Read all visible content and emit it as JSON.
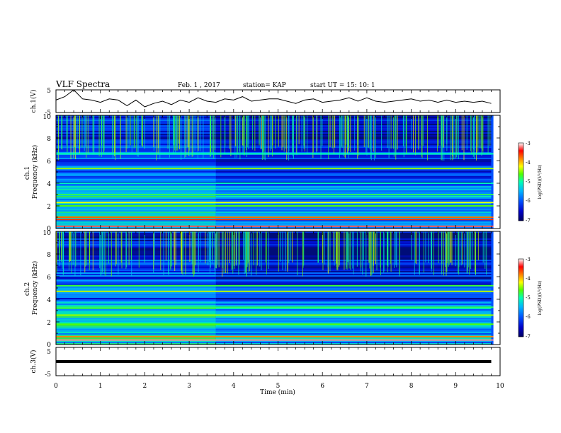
{
  "header": {
    "title": "VLF Spectra",
    "date": "Feb. 1 , 2017",
    "station": "station= KAP",
    "start": "start  UT =   15: 10: 1"
  },
  "colors": {
    "background": "#ffffff",
    "trace": "#000000",
    "colormap": [
      "#000060",
      "#0000c8",
      "#0050ff",
      "#00b4ff",
      "#00ffb4",
      "#50ff00",
      "#ffff00",
      "#ff8000",
      "#ff0000",
      "#ffffff"
    ]
  },
  "chart_data": [
    {
      "type": "line",
      "panel": "ch1",
      "ylabel": "ch.1(V)",
      "ylim": [
        -5,
        5
      ],
      "ytick_labels": [
        "5",
        "-5"
      ],
      "xlim": [
        0,
        10
      ],
      "x": [
        0,
        0.2,
        0.4,
        0.6,
        0.8,
        1.0,
        1.2,
        1.4,
        1.6,
        1.8,
        2.0,
        2.2,
        2.4,
        2.6,
        2.8,
        3.0,
        3.2,
        3.4,
        3.6,
        3.8,
        4.0,
        4.2,
        4.4,
        4.6,
        4.8,
        5.0,
        5.2,
        5.4,
        5.6,
        5.8,
        6.0,
        6.2,
        6.4,
        6.6,
        6.8,
        7.0,
        7.2,
        7.4,
        7.6,
        7.8,
        8.0,
        8.2,
        8.4,
        8.6,
        8.8,
        9.0,
        9.2,
        9.4,
        9.6,
        9.8
      ],
      "values": [
        0.5,
        2,
        5,
        1,
        0.5,
        -0.5,
        1,
        0.5,
        -2,
        0.5,
        -2.5,
        -1,
        0,
        -1.5,
        0.5,
        -0.5,
        1.5,
        0,
        -0.5,
        1,
        0.5,
        2,
        0,
        0.5,
        1,
        1,
        0,
        -1,
        0.5,
        1,
        -0.5,
        0,
        0.5,
        1.5,
        0,
        1.5,
        0,
        -0.5,
        0,
        0.5,
        1,
        0,
        0.5,
        -0.5,
        0.5,
        -0.5,
        0,
        -0.5,
        0,
        -1
      ]
    },
    {
      "type": "heatmap",
      "panel": "ch2",
      "ylabel": "ch.1\nFrequency  (kHz)",
      "ylim": [
        0,
        10
      ],
      "ytick_labels": [
        "0",
        "2",
        "4",
        "6",
        "8",
        "10"
      ],
      "xlim": [
        0,
        10
      ],
      "colorbar": {
        "label": "log(PSD)(V²/Hz)",
        "range": [
          -7,
          -3
        ],
        "tick_labels": [
          "-3",
          "-4",
          "-5",
          "-6",
          "-7"
        ]
      },
      "bands_khz": [
        {
          "f": 0.2,
          "level": -3.3
        },
        {
          "f": 0.8,
          "level": -3.6
        },
        {
          "f": 1.0,
          "level": -3.8
        },
        {
          "f": 2.0,
          "level": -4.8
        },
        {
          "f": 2.3,
          "level": -4.4
        },
        {
          "f": 3.0,
          "level": -5.0
        },
        {
          "f": 4.0,
          "level": -5.3
        },
        {
          "f": 5.3,
          "level": -4.6
        },
        {
          "f": 6.6,
          "level": -5.2
        }
      ]
    },
    {
      "type": "heatmap",
      "panel": "ch3",
      "ylabel": "ch.2\nFrequency  (kHz)",
      "ylim": [
        0,
        10
      ],
      "ytick_labels": [
        "0",
        "2",
        "4",
        "6",
        "8",
        "10"
      ],
      "xlim": [
        0,
        10
      ],
      "colorbar": {
        "label": "log(PSD)(V²/Hz)",
        "range": [
          -7,
          -3
        ],
        "tick_labels": [
          "-3",
          "-4",
          "-5",
          "-6",
          "-7"
        ]
      },
      "bands_khz": [
        {
          "f": 0.4,
          "level": -3.2
        },
        {
          "f": 0.7,
          "level": -3.9
        },
        {
          "f": 1.8,
          "level": -4.8
        },
        {
          "f": 2.6,
          "level": -4.6
        },
        {
          "f": 3.3,
          "level": -5.0
        },
        {
          "f": 4.7,
          "level": -4.5
        },
        {
          "f": 5.2,
          "level": -4.9
        }
      ]
    },
    {
      "type": "line",
      "panel": "ch4",
      "ylabel": "ch.3(V)",
      "ylim": [
        -5,
        5
      ],
      "ytick_labels": [
        "5",
        "-5"
      ],
      "xlim": [
        0,
        10
      ],
      "xlabel": "Time  (min)",
      "xtick_labels": [
        "0",
        "1",
        "2",
        "3",
        "4",
        "5",
        "6",
        "7",
        "8",
        "9",
        "10"
      ],
      "x": [
        0,
        9.8
      ],
      "values": [
        0,
        0
      ]
    }
  ]
}
